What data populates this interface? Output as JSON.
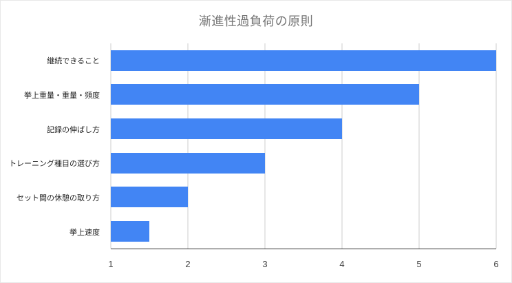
{
  "title": "漸進性過負荷の原則",
  "colors": {
    "bar": "#4285F4",
    "grid": "#cccccc",
    "axis": "#333333",
    "title": "#757575"
  },
  "chart_data": {
    "type": "bar",
    "orientation": "horizontal",
    "title": "漸進性過負荷の原則",
    "categories": [
      "継続できること",
      "挙上重量・重量・頻度",
      "記録の伸ばし方",
      "トレーニング種目の選び方",
      "セット間の休憩の取り方",
      "挙上速度"
    ],
    "values": [
      6,
      5,
      4,
      3,
      2,
      1.5
    ],
    "xlabel": "",
    "ylabel": "",
    "xlim": [
      1,
      6
    ],
    "xticks": [
      1,
      2,
      3,
      4,
      5,
      6
    ],
    "grid": true,
    "legend": "none"
  }
}
